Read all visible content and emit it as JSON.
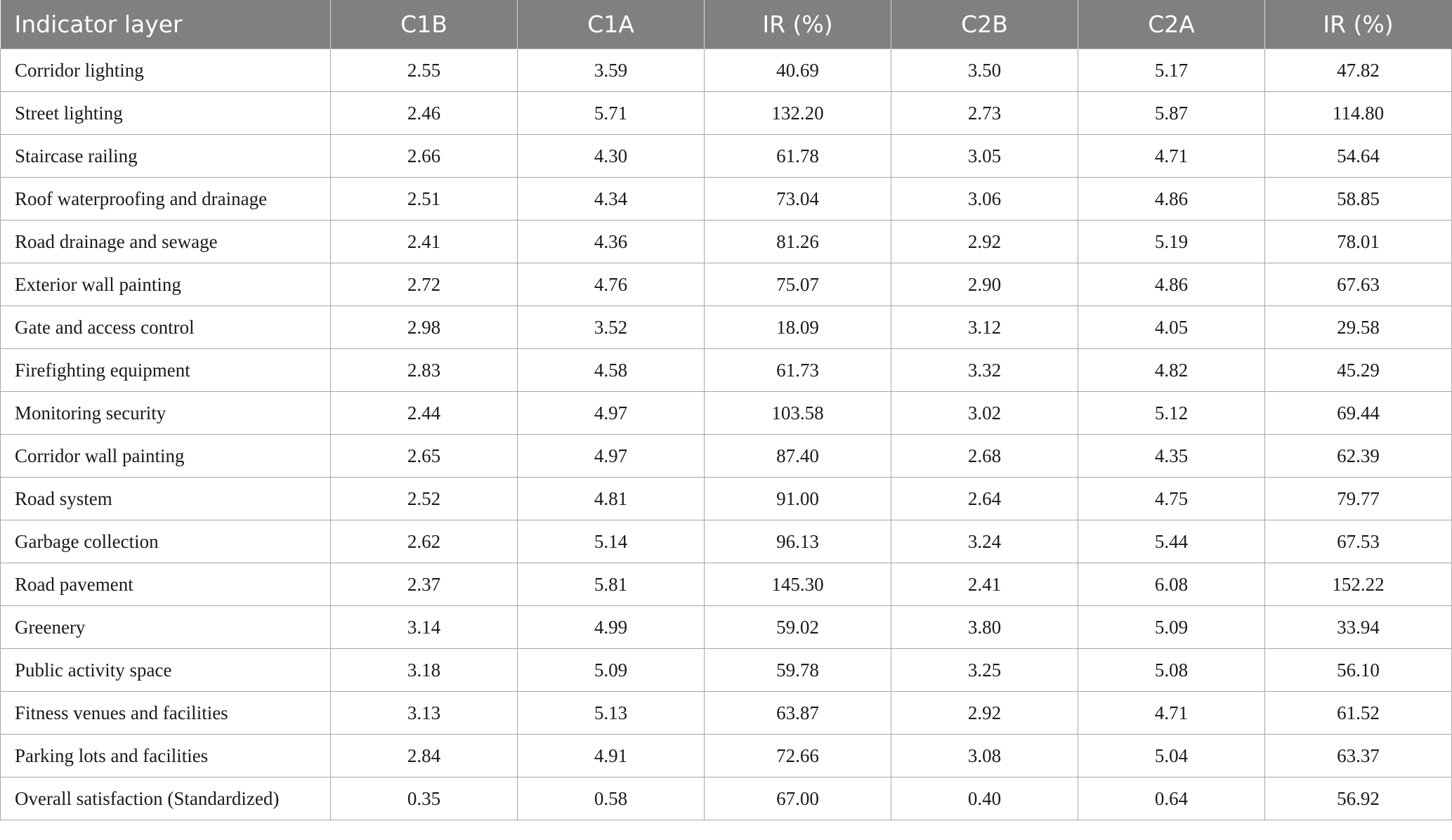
{
  "table": {
    "headers": [
      "Indicator layer",
      "C1B",
      "C1A",
      "IR (%)",
      "C2B",
      "C2A",
      "IR (%)"
    ],
    "rows": [
      [
        "Corridor lighting",
        "2.55",
        "3.59",
        "40.69",
        "3.50",
        "5.17",
        "47.82"
      ],
      [
        "Street lighting",
        "2.46",
        "5.71",
        "132.20",
        "2.73",
        "5.87",
        "114.80"
      ],
      [
        "Staircase railing",
        "2.66",
        "4.30",
        "61.78",
        "3.05",
        "4.71",
        "54.64"
      ],
      [
        "Roof waterproofing and drainage",
        "2.51",
        "4.34",
        "73.04",
        "3.06",
        "4.86",
        "58.85"
      ],
      [
        "Road drainage and sewage",
        "2.41",
        "4.36",
        "81.26",
        "2.92",
        "5.19",
        "78.01"
      ],
      [
        "Exterior wall painting",
        "2.72",
        "4.76",
        "75.07",
        "2.90",
        "4.86",
        "67.63"
      ],
      [
        "Gate and access control",
        "2.98",
        "3.52",
        "18.09",
        "3.12",
        "4.05",
        "29.58"
      ],
      [
        "Firefighting equipment",
        "2.83",
        "4.58",
        "61.73",
        "3.32",
        "4.82",
        "45.29"
      ],
      [
        "Monitoring security",
        "2.44",
        "4.97",
        "103.58",
        "3.02",
        "5.12",
        "69.44"
      ],
      [
        "Corridor wall painting",
        "2.65",
        "4.97",
        "87.40",
        "2.68",
        "4.35",
        "62.39"
      ],
      [
        "Road system",
        "2.52",
        "4.81",
        "91.00",
        "2.64",
        "4.75",
        "79.77"
      ],
      [
        "Garbage collection",
        "2.62",
        "5.14",
        "96.13",
        "3.24",
        "5.44",
        "67.53"
      ],
      [
        "Road pavement",
        "2.37",
        "5.81",
        "145.30",
        "2.41",
        "6.08",
        "152.22"
      ],
      [
        "Greenery",
        "3.14",
        "4.99",
        "59.02",
        "3.80",
        "5.09",
        "33.94"
      ],
      [
        "Public activity space",
        "3.18",
        "5.09",
        "59.78",
        "3.25",
        "5.08",
        "56.10"
      ],
      [
        "Fitness venues and facilities",
        "3.13",
        "5.13",
        "63.87",
        "2.92",
        "4.71",
        "61.52"
      ],
      [
        "Parking lots and facilities",
        "2.84",
        "4.91",
        "72.66",
        "3.08",
        "5.04",
        "63.37"
      ],
      [
        "Overall satisfaction (Standardized)",
        "0.35",
        "0.58",
        "67.00",
        "0.40",
        "0.64",
        "56.92"
      ]
    ]
  },
  "colors": {
    "header_bg": "#808080",
    "header_text": "#ffffff",
    "border": "#a6a6a6"
  }
}
